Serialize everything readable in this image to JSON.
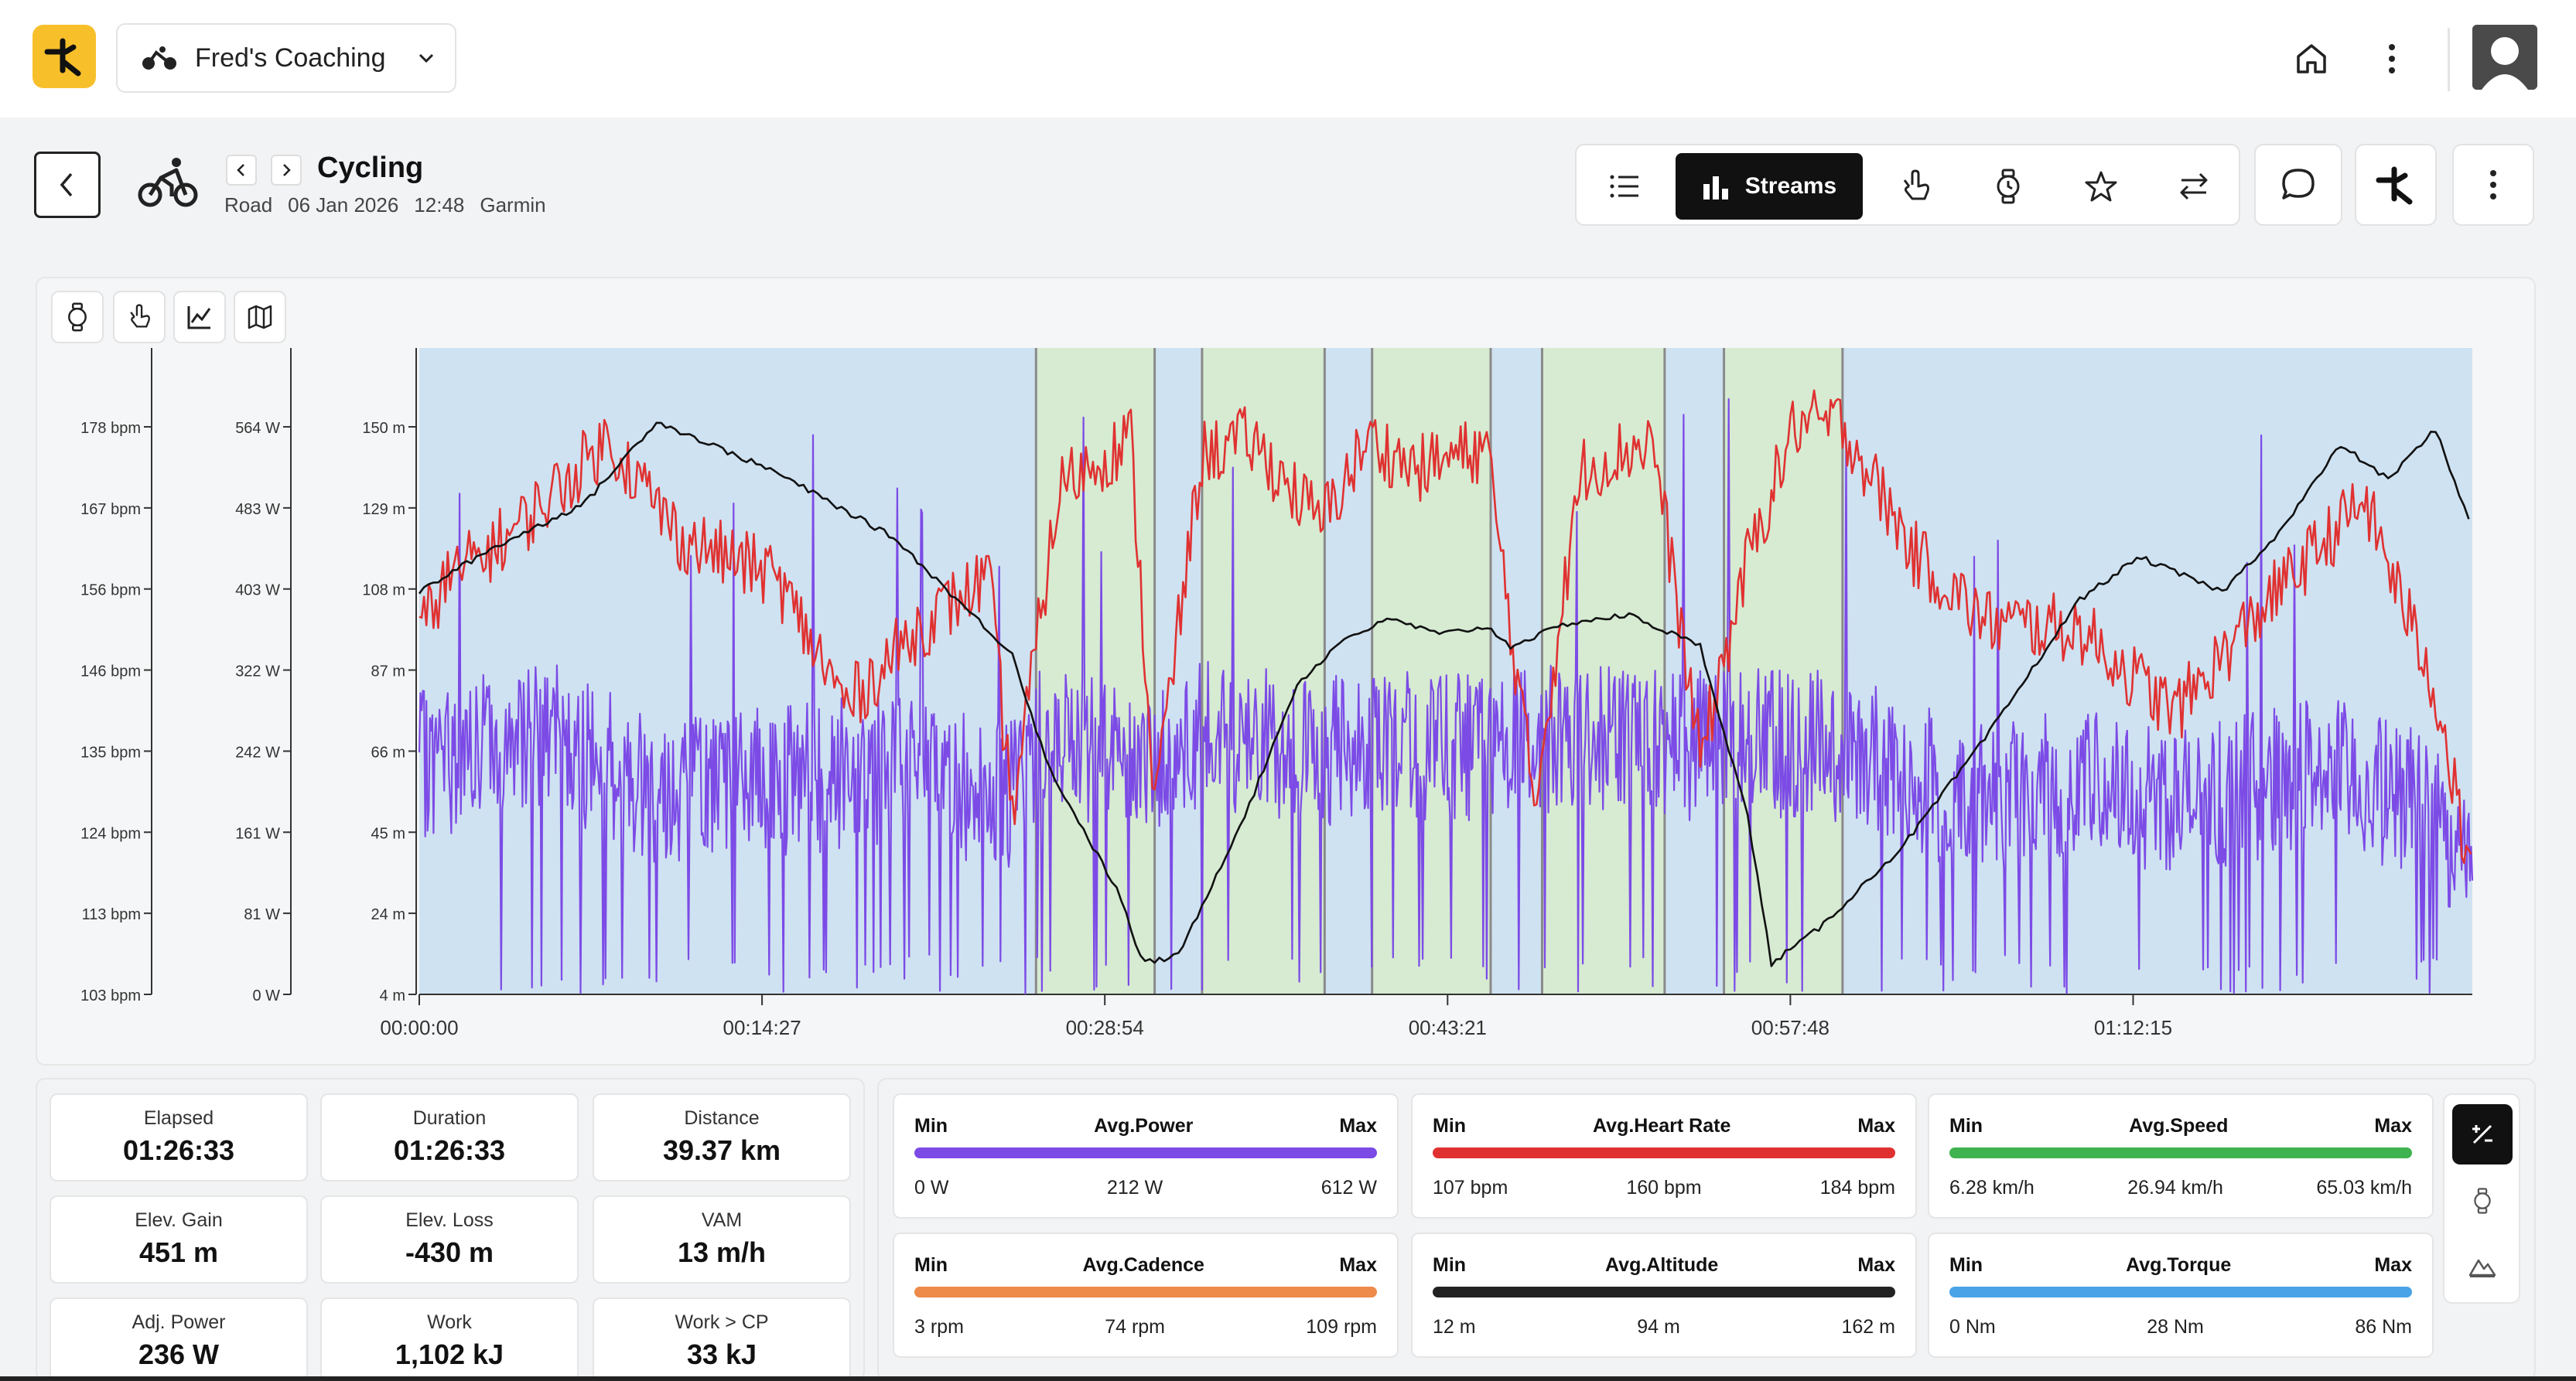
{
  "header": {
    "coach_name": "Fred's Coaching",
    "colors": {
      "brand": "#f7c02b"
    }
  },
  "activity": {
    "title": "Cycling",
    "type": "Road",
    "date": "06 Jan 2026",
    "time": "12:48",
    "device": "Garmin"
  },
  "tabs": {
    "streams_label": "Streams",
    "icons": [
      "list-icon",
      "bar-chart-icon",
      "hand-point-icon",
      "watch-icon",
      "star-icon",
      "swap-icon"
    ]
  },
  "chart_data": {
    "type": "line",
    "x_ticks": [
      "00:00:00",
      "00:14:27",
      "00:28:54",
      "00:43:21",
      "00:57:48",
      "01:12:15"
    ],
    "hr_axis": [
      "178 bpm",
      "167 bpm",
      "156 bpm",
      "146 bpm",
      "135 bpm",
      "124 bpm",
      "113 bpm",
      "103 bpm"
    ],
    "power_axis": [
      "564 W",
      "483 W",
      "403 W",
      "322 W",
      "242 W",
      "161 W",
      "81 W",
      "0 W"
    ],
    "altitude_axis": [
      "150 m",
      "129 m",
      "108 m",
      "87 m",
      "66 m",
      "45 m",
      "24 m",
      "4 m"
    ],
    "x_range_s": [
      0,
      5193
    ],
    "intervals_s": [
      [
        1560,
        1860
      ],
      [
        1980,
        2290
      ],
      [
        2410,
        2710
      ],
      [
        2840,
        3150
      ],
      [
        3300,
        3600
      ]
    ],
    "series": [
      {
        "name": "altitude",
        "color": "#111111",
        "unit": "m",
        "t": [
          0,
          180,
          420,
          600,
          900,
          1200,
          1500,
          1590,
          1770,
          1830,
          1920,
          2100,
          2220,
          2340,
          2460,
          2580,
          2700,
          2760,
          2910,
          3060,
          3240,
          3360,
          3420,
          3540,
          3750,
          3960,
          4200,
          4350,
          4560,
          4710,
          4860,
          4980,
          5100,
          5190
        ],
        "v": [
          108,
          119,
          131,
          152,
          139,
          122,
          92,
          63,
          30,
          12,
          14,
          53,
          84,
          96,
          101,
          97,
          99,
          94,
          100,
          102,
          94,
          50,
          12,
          21,
          42,
          70,
          106,
          117,
          108,
          124,
          146,
          137,
          150,
          125
        ]
      },
      {
        "name": "heart rate",
        "color": "#e03131",
        "unit": "bpm",
        "t": [
          0,
          60,
          240,
          480,
          660,
          900,
          1080,
          1260,
          1440,
          1500,
          1620,
          1800,
          1860,
          1980,
          2100,
          2280,
          2400,
          2520,
          2700,
          2820,
          2940,
          3120,
          3240,
          3360,
          3480,
          3600,
          3780,
          3960,
          4200,
          4440,
          4680,
          4920,
          5100,
          5190
        ],
        "v": [
          150,
          157,
          164,
          176,
          163,
          158,
          141,
          151,
          158,
          127,
          170,
          176,
          128,
          174,
          176,
          165,
          176,
          172,
          175,
          128,
          172,
          176,
          134,
          160,
          178,
          178,
          161,
          152,
          151,
          140,
          155,
          168,
          143,
          118
        ]
      },
      {
        "name": "power",
        "color": "#7c4be6",
        "unit": "W",
        "t": [
          0,
          300,
          600,
          900,
          1200,
          1500,
          1560,
          1860,
          1980,
          2290,
          2410,
          2710,
          2840,
          3150,
          3300,
          3600,
          3900,
          4200,
          4500,
          4800,
          5100,
          5190
        ],
        "v": [
          225,
          260,
          205,
          210,
          225,
          195,
          245,
          235,
          255,
          240,
          250,
          240,
          255,
          245,
          250,
          245,
          195,
          210,
          190,
          225,
          180,
          120
        ]
      }
    ]
  },
  "stats": [
    {
      "label": "Elapsed",
      "value": "01:26:33"
    },
    {
      "label": "Duration",
      "value": "01:26:33"
    },
    {
      "label": "Distance",
      "value": "39.37 km"
    },
    {
      "label": "Elev. Gain",
      "value": "451 m"
    },
    {
      "label": "Elev. Loss",
      "value": "-430 m"
    },
    {
      "label": "VAM",
      "value": "13 m/h"
    },
    {
      "label": "Adj. Power",
      "value": "236 W"
    },
    {
      "label": "Work",
      "value": "1,102 kJ"
    },
    {
      "label": "Work > CP",
      "value": "33 kJ"
    }
  ],
  "ranges": [
    {
      "min_label": "Min",
      "title": "Avg.Power",
      "max_label": "Max",
      "min": "0 W",
      "avg": "212 W",
      "max": "612 W",
      "color": "#7c4be6"
    },
    {
      "min_label": "Min",
      "title": "Avg.Heart Rate",
      "max_label": "Max",
      "min": "107 bpm",
      "avg": "160 bpm",
      "max": "184 bpm",
      "color": "#e03131"
    },
    {
      "min_label": "Min",
      "title": "Avg.Speed",
      "max_label": "Max",
      "min": "6.28 km/h",
      "avg": "26.94 km/h",
      "max": "65.03 km/h",
      "color": "#3fb34f"
    },
    {
      "min_label": "Min",
      "title": "Avg.Cadence",
      "max_label": "Max",
      "min": "3 rpm",
      "avg": "74 rpm",
      "max": "109 rpm",
      "color": "#ee8a4a"
    },
    {
      "min_label": "Min",
      "title": "Avg.Altitude",
      "max_label": "Max",
      "min": "12 m",
      "avg": "94 m",
      "max": "162 m",
      "color": "#222222"
    },
    {
      "min_label": "Min",
      "title": "Avg.Torque",
      "max_label": "Max",
      "min": "0 Nm",
      "avg": "28 Nm",
      "max": "86 Nm",
      "color": "#4aa3e6"
    }
  ]
}
